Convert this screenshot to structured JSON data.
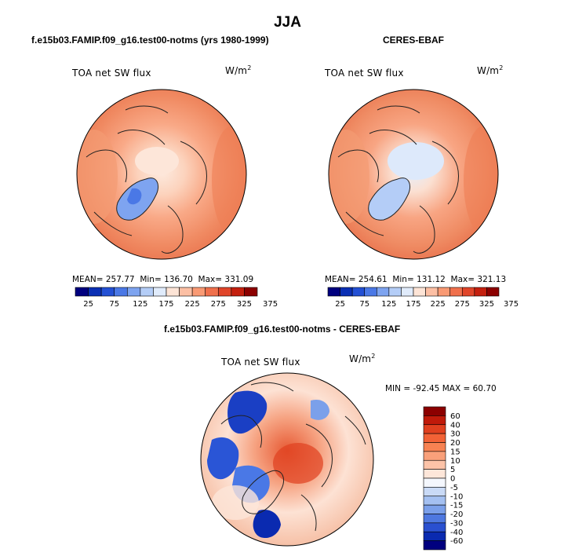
{
  "title": "JJA",
  "panels": [
    {
      "title": "f.e15b03.FAMIP.f09_g16.test00-notms (yrs 1980-1999)",
      "field_label": "TOA net SW flux",
      "units": "W/m",
      "units_exp": "2",
      "stats": {
        "mean_label": "MEAN=",
        "mean": "257.77",
        "min_label": "Min=",
        "min": "136.70",
        "max_label": "Max=",
        "max": "331.09"
      }
    },
    {
      "title": "CERES-EBAF",
      "field_label": "TOA net SW flux",
      "units": "W/m",
      "units_exp": "2",
      "stats": {
        "mean_label": "MEAN=",
        "mean": "254.61",
        "min_label": "Min=",
        "min": "131.12",
        "max_label": "Max=",
        "max": "321.13"
      }
    },
    {
      "title": "f.e15b03.FAMIP.f09_g16.test00-notms - CERES-EBAF",
      "field_label": "TOA net SW flux",
      "units": "W/m",
      "units_exp": "2",
      "stats": {
        "min_label": "MIN =",
        "min": "-92.45",
        "max_label": "MAX =",
        "max": "60.70"
      }
    }
  ],
  "colorbar_abs": {
    "ticks": [
      "25",
      "75",
      "125",
      "175",
      "225",
      "275",
      "325",
      "375"
    ],
    "colors": [
      "#00007f",
      "#0a2fb4",
      "#2350d4",
      "#4a78e6",
      "#7ea4f0",
      "#b4cdf7",
      "#e0ebfb",
      "#fde4d6",
      "#fcbfa4",
      "#f99a74",
      "#f0704c",
      "#e0452a",
      "#c4200f",
      "#8c0000"
    ]
  },
  "colorbar_diff": {
    "ticks": [
      "60",
      "40",
      "30",
      "20",
      "15",
      "10",
      "5",
      "0",
      "-5",
      "-10",
      "-15",
      "-20",
      "-30",
      "-40",
      "-60"
    ],
    "colors": [
      "#8c0000",
      "#c01a0a",
      "#e0401f",
      "#f26236",
      "#f78252",
      "#f9a07a",
      "#fcc3a8",
      "#fde6d9",
      "#f4f7fd",
      "#c9daf6",
      "#a4c0f1",
      "#7ba0ea",
      "#4e78e0",
      "#2a50d0",
      "#0a2ab0",
      "#00007f"
    ]
  },
  "chart_data": [
    {
      "type": "heatmap",
      "title": "f.e15b03.FAMIP.f09_g16.test00-notms (yrs 1980-1999)",
      "subtitle": "TOA net SW flux",
      "units": "W/m2",
      "projection": "north polar stereographic",
      "stats": {
        "mean": 257.77,
        "min": 136.7,
        "max": 331.09
      },
      "colorbar_ticks": [
        25,
        75,
        125,
        175,
        225,
        275,
        325,
        375
      ]
    },
    {
      "type": "heatmap",
      "title": "CERES-EBAF",
      "subtitle": "TOA net SW flux",
      "units": "W/m2",
      "projection": "north polar stereographic",
      "stats": {
        "mean": 254.61,
        "min": 131.12,
        "max": 321.13
      },
      "colorbar_ticks": [
        25,
        75,
        125,
        175,
        225,
        275,
        325,
        375
      ]
    },
    {
      "type": "heatmap",
      "title": "f.e15b03.FAMIP.f09_g16.test00-notms - CERES-EBAF",
      "subtitle": "TOA net SW flux",
      "units": "W/m2",
      "projection": "north polar stereographic",
      "stats": {
        "min": -92.45,
        "max": 60.7
      },
      "colorbar_ticks": [
        60,
        40,
        30,
        20,
        15,
        10,
        5,
        0,
        -5,
        -10,
        -15,
        -20,
        -30,
        -40,
        -60
      ]
    }
  ]
}
